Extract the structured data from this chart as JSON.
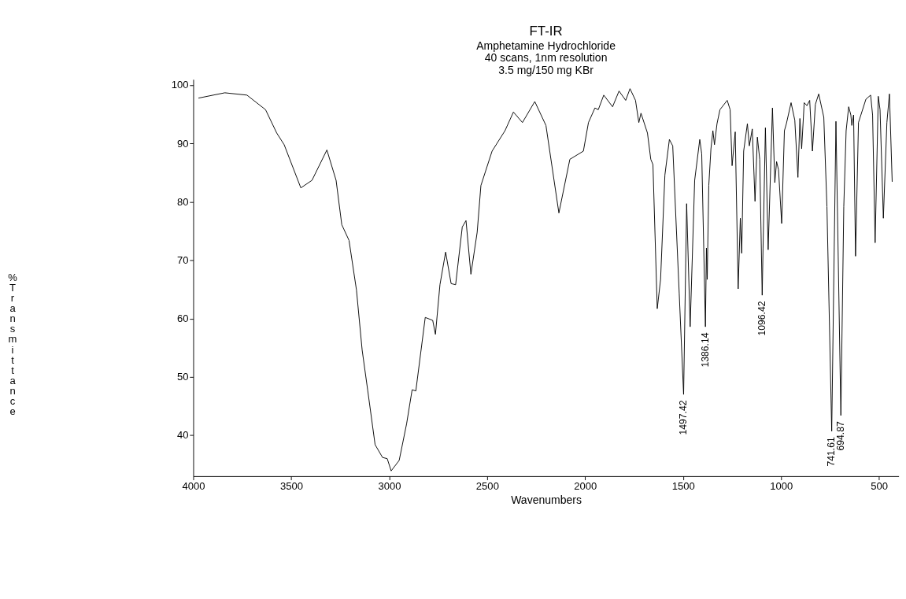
{
  "chart_data": {
    "type": "line",
    "title": "FT-IR",
    "subtitle": "Amphetamine Hydrochloride\n40 scans, 1nm resolution\n3.5 mg/150 mg KBr",
    "xlabel": "Wavenumbers",
    "ylabel": "% Transmittance",
    "xlim": [
      4000,
      400
    ],
    "xticks": [
      4000,
      3500,
      3000,
      2500,
      2000,
      1500,
      1000,
      500
    ],
    "ylim": [
      33,
      101
    ],
    "yticks": [
      40,
      50,
      60,
      70,
      80,
      90,
      100
    ],
    "grid": false,
    "marker": "none",
    "line_style": "solid",
    "annotations": [
      {
        "text": "1497.42",
        "x": 1497.42,
        "y": 47.0
      },
      {
        "text": "1386.14",
        "x": 1386.14,
        "y": 58.6
      },
      {
        "text": "1096.42",
        "x": 1096.42,
        "y": 64.0
      },
      {
        "text": "741.61",
        "x": 741.61,
        "y": 40.7
      },
      {
        "text": "694.87",
        "x": 694.87,
        "y": 43.4
      }
    ],
    "series": [
      {
        "color": "#000000",
        "x": [
          3972,
          3839,
          3726,
          3631,
          3574,
          3536,
          3451,
          3394,
          3318,
          3271,
          3242,
          3205,
          3167,
          3138,
          3110,
          3072,
          3034,
          3010,
          2990,
          2949,
          2911,
          2883,
          2864,
          2816,
          2778,
          2764,
          2741,
          2712,
          2684,
          2661,
          2627,
          2608,
          2583,
          2551,
          2532,
          2475,
          2409,
          2366,
          2320,
          2257,
          2200,
          2134,
          2078,
          2009,
          1983,
          1950,
          1933,
          1905,
          1860,
          1827,
          1793,
          1771,
          1743,
          1726,
          1715,
          1682,
          1665,
          1654,
          1632,
          1615,
          1593,
          1570,
          1553,
          1520,
          1497.42,
          1482,
          1464,
          1441,
          1415,
          1405,
          1386.14,
          1381,
          1377,
          1369,
          1358,
          1348,
          1340,
          1327,
          1312,
          1275,
          1260,
          1250,
          1234,
          1219,
          1208,
          1201,
          1191,
          1172,
          1162,
          1147,
          1133,
          1121,
          1109,
          1096.42,
          1092,
          1080,
          1066,
          1044,
          1032,
          1023,
          1013,
          997,
          983,
          973,
          949,
          930,
          914,
          904,
          895,
          882,
          868,
          854,
          840,
          825,
          808,
          782,
          766,
          741.61,
          720,
          694.87,
          680,
          668,
          655,
          644,
          639,
          630,
          620,
          605,
          567,
          543,
          533,
          520,
          504,
          495,
          478,
          460,
          447,
          433
        ],
        "values": [
          97.8,
          98.7,
          98.3,
          95.8,
          91.8,
          89.8,
          82.4,
          83.7,
          88.9,
          83.7,
          76.1,
          73.4,
          64.9,
          54.6,
          47.8,
          38.4,
          36.2,
          36.0,
          33.9,
          35.7,
          42.0,
          47.8,
          47.6,
          60.2,
          59.7,
          57.3,
          65.8,
          71.4,
          66.0,
          65.8,
          75.7,
          76.8,
          67.6,
          74.8,
          82.8,
          88.7,
          92.2,
          95.4,
          93.6,
          97.2,
          93.1,
          78.1,
          87.3,
          88.7,
          93.6,
          96.1,
          95.8,
          98.3,
          96.3,
          99.0,
          97.4,
          99.4,
          97.4,
          93.6,
          95.2,
          91.8,
          87.3,
          86.4,
          61.7,
          66.7,
          84.6,
          90.7,
          89.6,
          64.4,
          47.0,
          79.7,
          58.6,
          83.7,
          90.7,
          88.2,
          58.6,
          72.1,
          66.7,
          82.8,
          89.1,
          92.2,
          89.8,
          93.4,
          95.8,
          97.4,
          95.8,
          86.2,
          92.0,
          65.1,
          77.2,
          71.2,
          88.7,
          93.4,
          89.6,
          92.5,
          80.1,
          91.1,
          87.3,
          64.0,
          72.1,
          92.7,
          71.8,
          96.1,
          83.3,
          86.9,
          85.5,
          76.3,
          92.2,
          93.4,
          97.0,
          94.0,
          84.2,
          94.3,
          89.1,
          97.0,
          96.5,
          97.4,
          88.7,
          96.7,
          98.5,
          94.5,
          79.2,
          40.7,
          93.8,
          43.4,
          79.2,
          92.2,
          96.3,
          94.9,
          93.1,
          94.9,
          70.7,
          93.6,
          97.6,
          98.3,
          94.9,
          73.0,
          98.1,
          95.8,
          77.2,
          93.6,
          98.5,
          83.5
        ]
      }
    ]
  }
}
